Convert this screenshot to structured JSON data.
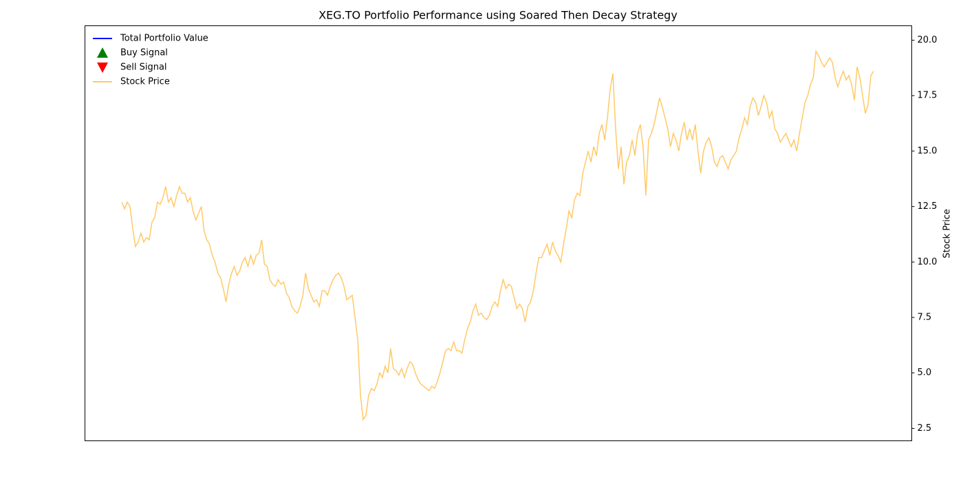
{
  "chart_data": {
    "type": "line",
    "title": "XEG.TO Portfolio Performance using Soared Then Decay Strategy",
    "y2label": "Stock Price",
    "y2lim": [
      1.94,
      20.65
    ],
    "y2ticks": [
      {
        "value": 2.5,
        "label": "2.5"
      },
      {
        "value": 5,
        "label": "5.0"
      },
      {
        "value": 7.5,
        "label": "7.5"
      },
      {
        "value": 10,
        "label": "10.0"
      },
      {
        "value": 12.5,
        "label": "12.5"
      },
      {
        "value": 15,
        "label": "15.0"
      },
      {
        "value": 17.5,
        "label": "17.5"
      },
      {
        "value": 20,
        "label": "20.0"
      }
    ],
    "legend": "upper left",
    "series": [
      {
        "name": "Total Portfolio Value",
        "color": "#0000ff",
        "marker": "line",
        "values": []
      },
      {
        "name": "Buy Signal",
        "color": "#008000",
        "marker": "triangle-up",
        "values": []
      },
      {
        "name": "Sell Signal",
        "color": "#ff0000",
        "marker": "triangle-down",
        "values": []
      },
      {
        "name": "Stock Price",
        "color": "#ffc966",
        "marker": "line",
        "axis": "y2",
        "values": [
          12.7,
          12.4,
          12.7,
          12.5,
          11.5,
          10.7,
          10.9,
          11.3,
          10.9,
          11.1,
          11.0,
          11.8,
          12.0,
          12.7,
          12.6,
          12.9,
          13.4,
          12.7,
          12.9,
          12.5,
          13.0,
          13.4,
          13.1,
          13.1,
          12.7,
          12.9,
          12.3,
          11.9,
          12.2,
          12.5,
          11.4,
          11.0,
          10.8,
          10.3,
          10.0,
          9.5,
          9.3,
          8.8,
          8.2,
          9.0,
          9.5,
          9.8,
          9.4,
          9.6,
          10.0,
          10.2,
          9.8,
          10.3,
          9.9,
          10.3,
          10.4,
          11.0,
          9.9,
          9.8,
          9.2,
          9.0,
          8.9,
          9.2,
          9.0,
          9.1,
          8.6,
          8.4,
          8.0,
          7.8,
          7.7,
          8.0,
          8.5,
          9.5,
          8.8,
          8.5,
          8.2,
          8.3,
          8.0,
          8.7,
          8.7,
          8.5,
          8.9,
          9.2,
          9.4,
          9.5,
          9.3,
          8.9,
          8.3,
          8.4,
          8.5,
          7.5,
          6.5,
          4.0,
          2.9,
          3.1,
          4.0,
          4.3,
          4.2,
          4.5,
          5.0,
          4.8,
          5.3,
          5.0,
          6.1,
          5.2,
          5.1,
          4.9,
          5.2,
          4.8,
          5.2,
          5.5,
          5.4,
          5.0,
          4.7,
          4.5,
          4.4,
          4.3,
          4.2,
          4.4,
          4.3,
          4.6,
          5.0,
          5.5,
          6.0,
          6.1,
          6.0,
          6.4,
          6.0,
          6.0,
          5.9,
          6.5,
          7.0,
          7.3,
          7.8,
          8.1,
          7.6,
          7.7,
          7.5,
          7.4,
          7.6,
          8.0,
          8.2,
          8.0,
          8.7,
          9.2,
          8.8,
          9.0,
          8.9,
          8.4,
          7.9,
          8.1,
          7.9,
          7.3,
          8.0,
          8.2,
          8.7,
          9.5,
          10.2,
          10.2,
          10.5,
          10.8,
          10.3,
          10.9,
          10.5,
          10.3,
          10.0,
          10.8,
          11.5,
          12.3,
          12.0,
          12.8,
          13.1,
          13.0,
          14.0,
          14.5,
          15.0,
          14.5,
          15.2,
          14.8,
          15.8,
          16.2,
          15.5,
          16.5,
          17.8,
          18.5,
          16.0,
          14.2,
          15.2,
          13.5,
          14.5,
          14.8,
          15.5,
          14.8,
          15.8,
          16.2,
          15.2,
          13.0,
          15.5,
          15.8,
          16.2,
          16.8,
          17.4,
          17.0,
          16.5,
          16.0,
          15.2,
          15.8,
          15.5,
          15.0,
          15.8,
          16.3,
          15.5,
          16.0,
          15.5,
          16.2,
          15.0,
          14.0,
          15.0,
          15.4,
          15.6,
          15.2,
          14.5,
          14.3,
          14.7,
          14.8,
          14.5,
          14.2,
          14.6,
          14.8,
          15.0,
          15.6,
          16.0,
          16.5,
          16.2,
          17.0,
          17.4,
          17.2,
          16.6,
          17.0,
          17.5,
          17.2,
          16.5,
          16.8,
          16.0,
          15.8,
          15.4,
          15.6,
          15.8,
          15.5,
          15.2,
          15.5,
          15.0,
          15.8,
          16.5,
          17.2,
          17.5,
          18.0,
          18.3,
          19.5,
          19.3,
          19.0,
          18.8,
          19.0,
          19.2,
          19.0,
          18.3,
          17.9,
          18.3,
          18.6,
          18.2,
          18.4,
          18.0,
          17.3,
          18.8,
          18.3,
          17.5,
          16.7,
          17.1,
          18.4,
          18.6
        ]
      }
    ]
  }
}
